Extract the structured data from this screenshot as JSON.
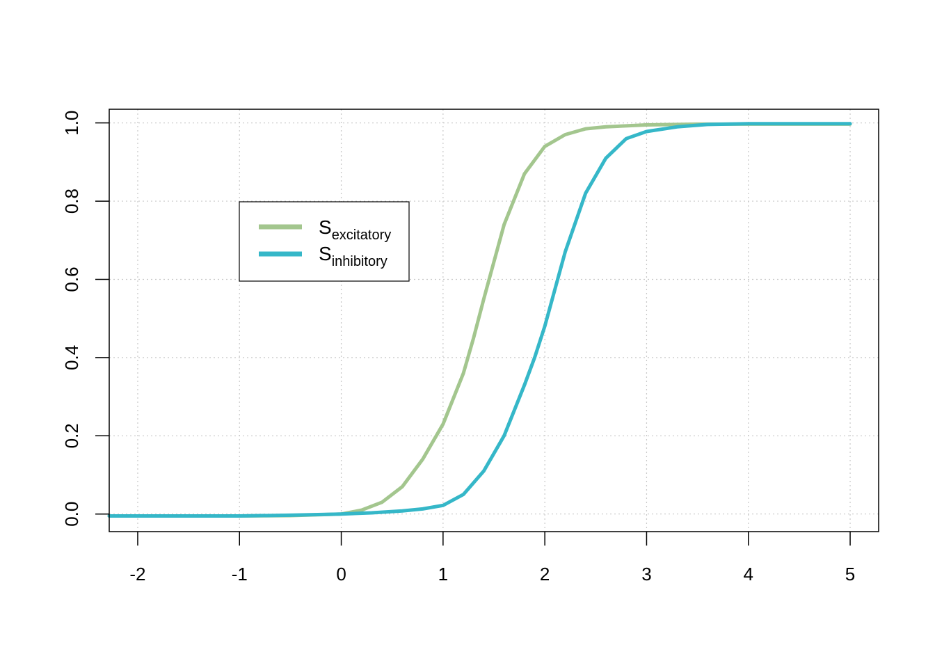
{
  "chart_data": {
    "type": "line",
    "title": "",
    "xlabel": "",
    "ylabel": "",
    "xlim": [
      -2.28,
      5.28
    ],
    "ylim": [
      -0.045,
      1.035
    ],
    "grid": true,
    "grid_style": "dotted",
    "legend_position": "upper-left",
    "x_ticks": [
      -2,
      -1,
      0,
      1,
      2,
      3,
      4,
      5
    ],
    "y_ticks": [
      0.0,
      0.2,
      0.4,
      0.6,
      0.8,
      1.0
    ],
    "x_tick_labels": [
      "-2",
      "-1",
      "0",
      "1",
      "2",
      "3",
      "4",
      "5"
    ],
    "y_tick_labels": [
      "0.0",
      "0.2",
      "0.4",
      "0.6",
      "0.8",
      "1.0"
    ],
    "series": [
      {
        "name": "S",
        "subscript": "excitatory",
        "color": "#a3c68e",
        "x": [
          -2.3,
          -2,
          -1.5,
          -1,
          -0.5,
          0,
          0.2,
          0.4,
          0.6,
          0.8,
          1.0,
          1.2,
          1.3,
          1.4,
          1.6,
          1.8,
          2.0,
          2.2,
          2.4,
          2.6,
          3.0,
          3.5,
          4.0,
          4.5,
          5.0
        ],
        "y": [
          -0.005,
          -0.005,
          -0.005,
          -0.005,
          -0.004,
          0.0,
          0.01,
          0.03,
          0.07,
          0.14,
          0.23,
          0.36,
          0.45,
          0.55,
          0.74,
          0.87,
          0.94,
          0.97,
          0.985,
          0.99,
          0.995,
          0.997,
          0.997,
          0.997,
          0.997
        ]
      },
      {
        "name": "S",
        "subscript": "inhibitory",
        "color": "#35b7c8",
        "x": [
          -2.3,
          -2,
          -1.5,
          -1,
          -0.5,
          0,
          0.3,
          0.6,
          0.8,
          1.0,
          1.2,
          1.4,
          1.6,
          1.8,
          1.9,
          2.0,
          2.2,
          2.4,
          2.6,
          2.8,
          3.0,
          3.3,
          3.6,
          4.0,
          4.5,
          5.0
        ],
        "y": [
          -0.005,
          -0.005,
          -0.005,
          -0.005,
          -0.003,
          0.0,
          0.003,
          0.008,
          0.013,
          0.022,
          0.05,
          0.11,
          0.2,
          0.33,
          0.4,
          0.48,
          0.67,
          0.82,
          0.91,
          0.96,
          0.978,
          0.99,
          0.996,
          0.998,
          0.998,
          0.998
        ]
      }
    ]
  }
}
